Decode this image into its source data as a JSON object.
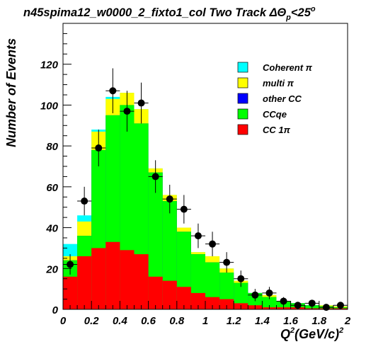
{
  "chart_data": {
    "type": "bar",
    "title": "n45spima12_w0000_2_fixto1_col Two Track ΔΘ",
    "title_sub": "p",
    "title_tail": "<25",
    "title_sup": "o",
    "ylabel": "Number of Events",
    "xlabel_parts": {
      "q": "Q",
      "q_sup": "2",
      "mid": "(GeV/c)",
      "mid_sup": "2"
    },
    "xlim": [
      0,
      2
    ],
    "ylim": [
      0,
      140
    ],
    "x_ticks": [
      "0",
      "0.2",
      "0.4",
      "0.6",
      "0.8",
      "1",
      "1.2",
      "1.4",
      "1.6",
      "1.8",
      "2"
    ],
    "x_tick_values": [
      0,
      0.2,
      0.4,
      0.6,
      0.8,
      1.0,
      1.2,
      1.4,
      1.6,
      1.8,
      2.0
    ],
    "y_ticks": [
      "0",
      "20",
      "40",
      "60",
      "80",
      "100",
      "120"
    ],
    "y_tick_values": [
      0,
      20,
      40,
      60,
      80,
      100,
      120
    ],
    "legend_position": "top-right",
    "bin_edges": [
      0,
      0.1,
      0.2,
      0.3,
      0.4,
      0.5,
      0.6,
      0.7,
      0.8,
      0.9,
      1.0,
      1.1,
      1.2,
      1.3,
      1.4,
      1.5,
      1.6,
      1.7,
      1.8,
      1.9,
      2.0
    ],
    "stack_order_bottom_to_top": [
      "CC 1π",
      "CCqe",
      "other CC",
      "multi π",
      "Coherent π"
    ],
    "series": [
      {
        "name": "CC 1π",
        "color": "#ff0000",
        "cumulative": [
          16,
          26,
          30,
          33,
          29,
          27,
          16,
          14,
          11,
          8,
          6,
          5,
          3,
          2,
          1,
          1,
          1,
          0.5,
          0.5,
          0.5
        ]
      },
      {
        "name": "CCqe",
        "color": "#00ff00",
        "cumulative": [
          24,
          36,
          78,
          95,
          100,
          91,
          67,
          53,
          38,
          27,
          23,
          18,
          13,
          8,
          6,
          4,
          3,
          2,
          1.5,
          1
        ]
      },
      {
        "name": "other CC",
        "color": "#0000ff",
        "cumulative": [
          24,
          36,
          78,
          95,
          100,
          91,
          67,
          53,
          38,
          27,
          23,
          18,
          13,
          8,
          6,
          4,
          3,
          2,
          1.5,
          1
        ]
      },
      {
        "name": "multi π",
        "color": "#ffff00",
        "cumulative": [
          26,
          43,
          87,
          103,
          106,
          98,
          69,
          56,
          40,
          28,
          26,
          20,
          14,
          8,
          7,
          4,
          3,
          2,
          2,
          1.5
        ]
      },
      {
        "name": "Coherent π",
        "color": "#00ffff",
        "cumulative": [
          32,
          46,
          88,
          104,
          106,
          98,
          69,
          56,
          40,
          28,
          26,
          20,
          14,
          8,
          7,
          4,
          3,
          2,
          2,
          1.5
        ]
      }
    ],
    "data_points": {
      "x": [
        0.05,
        0.15,
        0.25,
        0.35,
        0.45,
        0.55,
        0.65,
        0.75,
        0.85,
        0.95,
        1.05,
        1.15,
        1.25,
        1.35,
        1.45,
        1.55,
        1.65,
        1.75,
        1.85,
        1.95
      ],
      "y": [
        22,
        53,
        79,
        107,
        97,
        101,
        65,
        54,
        49,
        36,
        32,
        23,
        15,
        7,
        8,
        4,
        2,
        3,
        1,
        2
      ],
      "yerr": [
        5,
        7,
        9,
        11,
        10,
        10,
        8,
        7,
        7,
        6,
        6,
        5,
        4,
        3,
        3,
        2,
        1.5,
        1.7,
        1,
        1.5
      ]
    },
    "legend": [
      {
        "label": "Coherent π",
        "color": "#00ffff"
      },
      {
        "label": "multi π",
        "color": "#ffff00"
      },
      {
        "label": "other CC",
        "color": "#0000ff"
      },
      {
        "label": "CCqe",
        "color": "#00ff00"
      },
      {
        "label": "CC 1π",
        "color": "#ff0000"
      }
    ]
  }
}
